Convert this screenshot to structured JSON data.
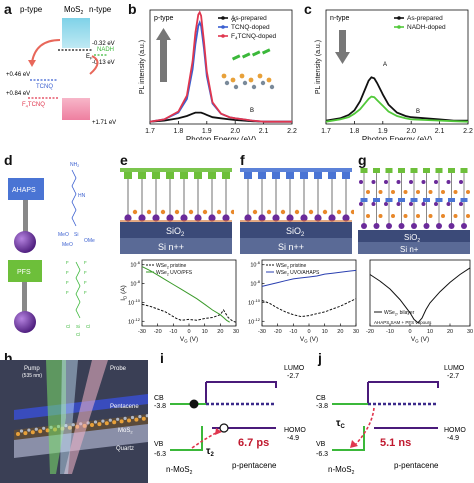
{
  "panels": {
    "a": {
      "label": "a",
      "col_p": "p-type",
      "col_mos2": "MoS",
      "col_mos2_sub": "2",
      "col_n": "n-type",
      "ef": "E",
      "ef_sub": "F",
      "nadh": "NADH",
      "e_m032": "-0.32 eV",
      "e_m013": "-0.13 eV",
      "e_046": "+0.46 eV",
      "tcnq": "TCNQ",
      "e_084": "+0.84 eV",
      "f4tcnq": "F",
      "f4tcnq_sub": "4",
      "f4tcnq_rest": "TCNQ",
      "e_171": "+1.71 eV"
    },
    "b": {
      "label": "b",
      "tag": "p-type",
      "peak_a": "A",
      "peak_b": "B"
    },
    "c": {
      "label": "c",
      "tag": "n-type",
      "peak_a": "A",
      "peak_b": "B"
    },
    "d": {
      "label": "d",
      "ahaps": "AHAPS",
      "pfs": "PFS",
      "ahaps_atoms": [
        "NH",
        "2",
        "HN",
        "MeO",
        "Si",
        "OMe",
        "MeO"
      ],
      "pfs_atoms": [
        "F",
        "F",
        "F",
        "F",
        "F",
        "F",
        "F",
        "F",
        "Cl",
        "Si",
        "Cl",
        "Cl"
      ]
    },
    "e": {
      "label": "e",
      "sio2": "SiO",
      "sio2_sub": "2",
      "si": "Si n++"
    },
    "f": {
      "label": "f",
      "sio2": "SiO",
      "sio2_sub": "2",
      "si": "Si n++"
    },
    "g": {
      "label": "g",
      "sio2": "SiO",
      "sio2_sub": "2",
      "si": "Si n+"
    },
    "h": {
      "label": "h",
      "pump": "Pump",
      "pump_wl": "(535 nm)",
      "probe": "Probe",
      "pentacene": "Pentacene",
      "mos2": "MoS",
      "mos2_sub": "2",
      "quartz": "Quartz"
    },
    "i": {
      "label": "i",
      "lumo": "LUMO",
      "lumo_val": "-2.7",
      "homo": "HOMO",
      "homo_val": "-4.9",
      "cb": "CB",
      "cb_val": "-3.8",
      "vb": "VB",
      "vb_val": "-6.3",
      "tau": "τ",
      "tau_sub": "2",
      "time": "6.7 ps",
      "left": "n-MoS",
      "left_sub": "2",
      "right": "p-pentacene"
    },
    "j": {
      "label": "j",
      "lumo": "LUMO",
      "lumo_val": "-2.7",
      "homo": "HOMO",
      "homo_val": "-4.9",
      "cb": "CB",
      "cb_val": "-3.8",
      "vb": "VB",
      "vb_val": "-6.3",
      "tau": "τ",
      "tau_sub": "C",
      "time": "5.1 ns",
      "left": "n-MoS",
      "left_sub": "2",
      "right": "p-pentacene"
    }
  },
  "chart_data": [
    {
      "id": "b",
      "type": "line",
      "xlabel": "Photon Energy (eV)",
      "ylabel": "PL intensity (a.u.)",
      "xlim": [
        1.7,
        2.2
      ],
      "xticks": [
        "1.7",
        "1.8",
        "1.9",
        "2.0",
        "2.1",
        "2.2"
      ],
      "legend": "top-right",
      "series": [
        {
          "name": "As-prepared",
          "color": "#111111",
          "x": [
            1.7,
            1.75,
            1.8,
            1.83,
            1.85,
            1.86,
            1.87,
            1.875,
            1.88,
            1.89,
            1.9,
            1.92,
            1.95,
            1.98,
            2.0,
            2.03,
            2.06,
            2.1,
            2.15,
            2.2
          ],
          "y": [
            0.02,
            0.03,
            0.05,
            0.07,
            0.09,
            0.1,
            0.1,
            0.1,
            0.1,
            0.09,
            0.08,
            0.06,
            0.05,
            0.04,
            0.035,
            0.03,
            0.025,
            0.02,
            0.02,
            0.02
          ]
        },
        {
          "name": "TCNQ-doped",
          "color": "#3a5fd0",
          "x": [
            1.7,
            1.75,
            1.8,
            1.83,
            1.85,
            1.86,
            1.87,
            1.875,
            1.88,
            1.89,
            1.9,
            1.92,
            1.95,
            1.98,
            2.0,
            2.03,
            2.06,
            2.1,
            2.15,
            2.2
          ],
          "y": [
            0.02,
            0.04,
            0.1,
            0.22,
            0.48,
            0.7,
            0.86,
            0.89,
            0.86,
            0.66,
            0.42,
            0.18,
            0.09,
            0.06,
            0.05,
            0.04,
            0.03,
            0.02,
            0.02,
            0.02
          ]
        },
        {
          "name": "F",
          "name_sub": "4",
          "name_rest": "TCNQ-doped",
          "color": "#e0364e",
          "x": [
            1.7,
            1.75,
            1.8,
            1.83,
            1.85,
            1.86,
            1.87,
            1.875,
            1.88,
            1.89,
            1.9,
            1.92,
            1.95,
            1.98,
            2.0,
            2.03,
            2.06,
            2.1,
            2.15,
            2.2
          ],
          "y": [
            0.02,
            0.04,
            0.11,
            0.25,
            0.55,
            0.8,
            0.96,
            0.98,
            0.95,
            0.72,
            0.46,
            0.19,
            0.09,
            0.06,
            0.05,
            0.04,
            0.03,
            0.02,
            0.02,
            0.02
          ]
        }
      ]
    },
    {
      "id": "c",
      "type": "line",
      "xlabel": "Photon Energy (eV)",
      "ylabel": "PL intensity (a.u.)",
      "xlim": [
        1.7,
        2.2
      ],
      "xticks": [
        "1.7",
        "1.8",
        "1.9",
        "2.0",
        "2.1",
        "2.2"
      ],
      "legend": "top-right",
      "series": [
        {
          "name": "As-prepared",
          "color": "#111111",
          "x": [
            1.7,
            1.75,
            1.78,
            1.8,
            1.82,
            1.84,
            1.85,
            1.86,
            1.87,
            1.88,
            1.9,
            1.92,
            1.95,
            1.98,
            2.0,
            2.05,
            2.1,
            2.15,
            2.2
          ],
          "y": [
            0.03,
            0.05,
            0.08,
            0.12,
            0.2,
            0.32,
            0.38,
            0.41,
            0.4,
            0.36,
            0.26,
            0.17,
            0.1,
            0.07,
            0.06,
            0.05,
            0.04,
            0.03,
            0.03
          ]
        },
        {
          "name": "NADH-doped",
          "color": "#52c93a",
          "x": [
            1.7,
            1.75,
            1.78,
            1.8,
            1.82,
            1.84,
            1.85,
            1.86,
            1.87,
            1.88,
            1.9,
            1.92,
            1.95,
            1.98,
            2.0,
            2.05,
            2.1,
            2.15,
            2.2
          ],
          "y": [
            0.02,
            0.04,
            0.06,
            0.09,
            0.13,
            0.19,
            0.22,
            0.24,
            0.235,
            0.21,
            0.16,
            0.11,
            0.07,
            0.05,
            0.04,
            0.035,
            0.03,
            0.025,
            0.02
          ]
        }
      ]
    },
    {
      "id": "e",
      "type": "line",
      "xlabel": "V",
      "xlabel_sub": "G",
      "xlabel_rest": " (V)",
      "ylabel": "I",
      "ylabel_sub": "D",
      "ylabel_rest": " (A)",
      "xlim": [
        -30,
        30
      ],
      "xticks": [
        "-30",
        "-20",
        "-10",
        "0",
        "10",
        "20",
        "30"
      ],
      "yticks": [
        "10",
        "10",
        "10",
        "10"
      ],
      "ytick_exp": [
        "-6",
        "-8",
        "-10",
        "-12"
      ],
      "legend": "top-left",
      "series": [
        {
          "name": "WSe",
          "name_sub": "2",
          "name_rest": " pristine",
          "color": "#111111",
          "dash": true,
          "x": [
            -30,
            -25,
            -20,
            -15,
            -10,
            -8,
            -5,
            0,
            5,
            10,
            15,
            20,
            22,
            25,
            28,
            30
          ],
          "y": [
            -10.2,
            -10.4,
            -10.7,
            -11.0,
            -11.5,
            -11.7,
            -11.9,
            -11.8,
            -11.9,
            -11.7,
            -11.6,
            -11.3,
            -10.8,
            -11.6,
            -12.0,
            -12.1
          ]
        },
        {
          "name": "WSe",
          "name_sub": "2",
          "name_rest": " UVO/PFS",
          "color": "#3a9a2a",
          "dash": false,
          "x": [
            -30,
            -25,
            -20,
            -15,
            -10,
            -5,
            0,
            5,
            10,
            15,
            20,
            22,
            24,
            26
          ],
          "y": [
            -6.2,
            -6.6,
            -7.1,
            -7.6,
            -8.1,
            -8.6,
            -9.1,
            -9.6,
            -10.2,
            -10.8,
            -11.3,
            -11.6,
            -11.9,
            -12.1
          ]
        }
      ]
    },
    {
      "id": "f",
      "type": "line",
      "xlabel": "V",
      "xlabel_sub": "G",
      "xlabel_rest": " (V)",
      "xlim": [
        -30,
        30
      ],
      "xticks": [
        "-30",
        "-20",
        "-10",
        "0",
        "10",
        "20",
        "30"
      ],
      "yticks": [
        "10",
        "10",
        "10",
        "10"
      ],
      "ytick_exp": [
        "-6",
        "-8",
        "-10",
        "-12"
      ],
      "legend": "top-left",
      "series": [
        {
          "name": "WSe",
          "name_sub": "2",
          "name_rest": " pristine",
          "color": "#111111",
          "dash": true,
          "x": [
            -30,
            -25,
            -20,
            -15,
            -10,
            -5,
            0,
            5,
            10,
            15,
            20,
            25,
            30
          ],
          "y": [
            -9.8,
            -10.1,
            -10.6,
            -11.0,
            -11.3,
            -11.5,
            -11.4,
            -11.2,
            -11.0,
            -10.7,
            -10.4,
            -10.0,
            -9.6
          ]
        },
        {
          "name": "WSe",
          "name_sub": "2",
          "name_rest": " UVO/AHAPS",
          "color": "#2a3fb0",
          "dash": false,
          "x": [
            -30,
            -25,
            -20,
            -15,
            -10,
            -5,
            0,
            5,
            10,
            15,
            20,
            25,
            30
          ],
          "y": [
            -8.3,
            -8.1,
            -7.9,
            -7.7,
            -7.5,
            -7.4,
            -7.3,
            -7.2,
            -7.0,
            -6.9,
            -6.8,
            -6.7,
            -6.6
          ]
        }
      ]
    },
    {
      "id": "g",
      "type": "line",
      "xlabel": "V",
      "xlabel_sub": "G",
      "xlabel_rest": " (V)",
      "xlim": [
        -20,
        30
      ],
      "xticks": [
        "-20",
        "-10",
        "0",
        "10",
        "20",
        "30"
      ],
      "legend": "bottom-left",
      "series": [
        {
          "name": "WSe",
          "name_sub": "2",
          "name_rest": ", bilayer",
          "color": "#111111",
          "dash": false,
          "x": [
            -20,
            -15,
            -10,
            -5,
            0,
            2,
            4,
            6,
            8,
            10,
            15,
            20,
            25,
            30
          ],
          "y": [
            0.78,
            0.68,
            0.56,
            0.4,
            0.2,
            0.1,
            0.05,
            0.12,
            0.25,
            0.35,
            0.52,
            0.66,
            0.78,
            0.88
          ]
        }
      ],
      "annotation": "AHAPS SAM + PFS vapours"
    }
  ]
}
